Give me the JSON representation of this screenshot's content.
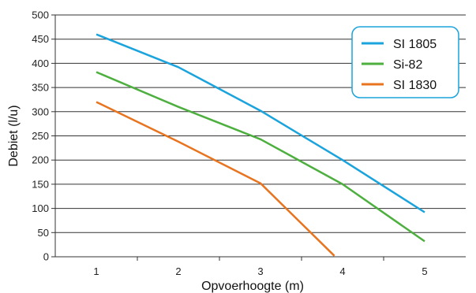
{
  "chart_data": {
    "type": "line",
    "xlabel": "Opvoerhoogte (m)",
    "ylabel": "Debiet (l/u)",
    "x_ticks": [
      1,
      2,
      3,
      4,
      5
    ],
    "xlim": [
      0.5,
      5.5
    ],
    "ylim": [
      0,
      500
    ],
    "y_ticks": [
      0,
      50,
      100,
      150,
      200,
      250,
      300,
      350,
      400,
      450,
      500
    ],
    "grid": "horizontal",
    "legend_position": "top-right",
    "series": [
      {
        "name": "SI 1805",
        "color": "#1aa3dc",
        "points": [
          [
            1,
            460
          ],
          [
            2,
            392
          ],
          [
            3,
            302
          ],
          [
            4,
            200
          ],
          [
            5,
            92
          ]
        ]
      },
      {
        "name": "Si-82",
        "color": "#4caf3e",
        "points": [
          [
            1,
            382
          ],
          [
            2,
            310
          ],
          [
            3,
            243
          ],
          [
            4,
            150
          ],
          [
            5,
            32
          ]
        ]
      },
      {
        "name": "SI 1830",
        "color": "#e8741f",
        "points": [
          [
            1,
            320
          ],
          [
            2,
            238
          ],
          [
            3,
            152
          ],
          [
            3.9,
            2
          ]
        ]
      }
    ]
  }
}
